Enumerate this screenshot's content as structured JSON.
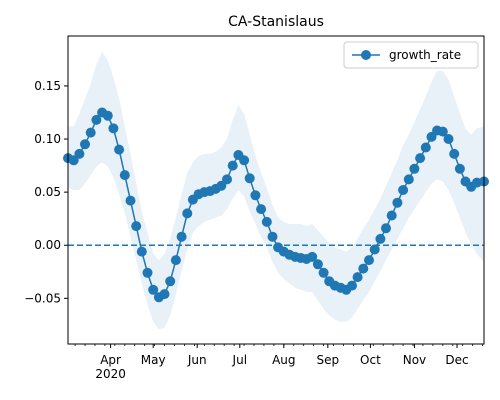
{
  "chart_data": {
    "type": "line",
    "title": "CA-Stanislaus",
    "xlabel": "",
    "ylabel": "",
    "x_ticks": [
      "Apr\n2020",
      "May",
      "Jun",
      "Jul",
      "Aug",
      "Sep",
      "Oct",
      "Nov",
      "Dec"
    ],
    "x_tick_dates": [
      "2020-04-01",
      "2020-05-01",
      "2020-06-01",
      "2020-07-01",
      "2020-08-01",
      "2020-09-01",
      "2020-10-01",
      "2020-11-01",
      "2020-12-01"
    ],
    "xlim": [
      "2020-03-02",
      "2020-12-20"
    ],
    "y_ticks": [
      "0.15",
      "0.10",
      "0.05",
      "0.00",
      "−0.05"
    ],
    "ylim": [
      -0.093,
      0.197
    ],
    "legend": {
      "position": "upper right",
      "entries": [
        "growth_rate"
      ]
    },
    "reference_line": {
      "y": 0.0,
      "style": "dashed"
    },
    "series": [
      {
        "name": "growth_rate",
        "color": "#1f77b4",
        "band_color": "#e8f0f8",
        "points": [
          [
            "2020-03-02",
            0.082,
            0.054,
            0.112
          ],
          [
            "2020-03-06",
            0.08,
            0.052,
            0.112
          ],
          [
            "2020-03-10",
            0.086,
            0.052,
            0.124
          ],
          [
            "2020-03-14",
            0.095,
            0.058,
            0.138
          ],
          [
            "2020-03-18",
            0.106,
            0.066,
            0.152
          ],
          [
            "2020-03-22",
            0.118,
            0.074,
            0.17
          ],
          [
            "2020-03-26",
            0.125,
            0.078,
            0.182
          ],
          [
            "2020-03-30",
            0.122,
            0.074,
            0.174
          ],
          [
            "2020-04-03",
            0.11,
            0.064,
            0.158
          ],
          [
            "2020-04-07",
            0.09,
            0.048,
            0.138
          ],
          [
            "2020-04-11",
            0.066,
            0.03,
            0.112
          ],
          [
            "2020-04-15",
            0.042,
            0.008,
            0.086
          ],
          [
            "2020-04-19",
            0.018,
            -0.014,
            0.058
          ],
          [
            "2020-04-23",
            -0.006,
            -0.036,
            0.032
          ],
          [
            "2020-04-27",
            -0.026,
            -0.056,
            0.012
          ],
          [
            "2020-05-01",
            -0.042,
            -0.072,
            -0.008
          ],
          [
            "2020-05-05",
            -0.049,
            -0.079,
            -0.014
          ],
          [
            "2020-05-09",
            -0.046,
            -0.078,
            -0.008
          ],
          [
            "2020-05-13",
            -0.034,
            -0.066,
            0.006
          ],
          [
            "2020-05-17",
            -0.014,
            -0.046,
            0.026
          ],
          [
            "2020-05-21",
            0.008,
            -0.024,
            0.048
          ],
          [
            "2020-05-25",
            0.03,
            -0.004,
            0.068
          ],
          [
            "2020-05-29",
            0.043,
            0.012,
            0.078
          ],
          [
            "2020-06-02",
            0.048,
            0.018,
            0.084
          ],
          [
            "2020-06-06",
            0.05,
            0.022,
            0.086
          ],
          [
            "2020-06-10",
            0.051,
            0.024,
            0.086
          ],
          [
            "2020-06-14",
            0.053,
            0.026,
            0.088
          ],
          [
            "2020-06-18",
            0.056,
            0.028,
            0.092
          ],
          [
            "2020-06-22",
            0.062,
            0.034,
            0.1
          ],
          [
            "2020-06-26",
            0.075,
            0.044,
            0.118
          ],
          [
            "2020-06-30",
            0.085,
            0.052,
            0.132
          ],
          [
            "2020-07-04",
            0.08,
            0.046,
            0.124
          ],
          [
            "2020-07-08",
            0.063,
            0.032,
            0.104
          ],
          [
            "2020-07-12",
            0.047,
            0.02,
            0.084
          ],
          [
            "2020-07-16",
            0.034,
            0.008,
            0.068
          ],
          [
            "2020-07-20",
            0.022,
            -0.002,
            0.054
          ],
          [
            "2020-07-24",
            0.008,
            -0.016,
            0.038
          ],
          [
            "2020-07-28",
            -0.002,
            -0.026,
            0.026
          ],
          [
            "2020-08-01",
            -0.006,
            -0.032,
            0.022
          ],
          [
            "2020-08-05",
            -0.009,
            -0.036,
            0.02
          ],
          [
            "2020-08-09",
            -0.011,
            -0.04,
            0.02
          ],
          [
            "2020-08-13",
            -0.012,
            -0.042,
            0.02
          ],
          [
            "2020-08-17",
            -0.013,
            -0.044,
            0.018
          ],
          [
            "2020-08-21",
            -0.011,
            -0.044,
            0.02
          ],
          [
            "2020-08-25",
            -0.018,
            -0.052,
            0.014
          ],
          [
            "2020-08-29",
            -0.026,
            -0.06,
            0.008
          ],
          [
            "2020-09-02",
            -0.034,
            -0.066,
            0.002
          ],
          [
            "2020-09-06",
            -0.038,
            -0.07,
            -0.002
          ],
          [
            "2020-09-10",
            -0.04,
            -0.072,
            -0.004
          ],
          [
            "2020-09-14",
            -0.042,
            -0.072,
            -0.006
          ],
          [
            "2020-09-18",
            -0.038,
            -0.068,
            -0.002
          ],
          [
            "2020-09-22",
            -0.03,
            -0.06,
            0.006
          ],
          [
            "2020-09-26",
            -0.022,
            -0.052,
            0.016
          ],
          [
            "2020-09-30",
            -0.014,
            -0.044,
            0.024
          ],
          [
            "2020-10-04",
            -0.004,
            -0.034,
            0.034
          ],
          [
            "2020-10-08",
            0.006,
            -0.024,
            0.044
          ],
          [
            "2020-10-12",
            0.016,
            -0.014,
            0.056
          ],
          [
            "2020-10-16",
            0.028,
            -0.004,
            0.068
          ],
          [
            "2020-10-20",
            0.04,
            0.006,
            0.08
          ],
          [
            "2020-10-24",
            0.052,
            0.016,
            0.094
          ],
          [
            "2020-10-28",
            0.062,
            0.026,
            0.104
          ],
          [
            "2020-11-01",
            0.072,
            0.034,
            0.116
          ],
          [
            "2020-11-05",
            0.082,
            0.042,
            0.128
          ],
          [
            "2020-11-09",
            0.092,
            0.05,
            0.14
          ],
          [
            "2020-11-13",
            0.102,
            0.058,
            0.154
          ],
          [
            "2020-11-17",
            0.108,
            0.062,
            0.164
          ],
          [
            "2020-11-21",
            0.107,
            0.06,
            0.164
          ],
          [
            "2020-11-25",
            0.1,
            0.052,
            0.156
          ],
          [
            "2020-11-29",
            0.086,
            0.04,
            0.14
          ],
          [
            "2020-12-03",
            0.072,
            0.026,
            0.124
          ],
          [
            "2020-12-07",
            0.06,
            0.012,
            0.11
          ],
          [
            "2020-12-11",
            0.055,
            0.0,
            0.104
          ],
          [
            "2020-12-15",
            0.059,
            -0.008,
            0.11
          ],
          [
            "2020-12-20",
            0.06,
            -0.016,
            0.112
          ]
        ]
      }
    ]
  }
}
